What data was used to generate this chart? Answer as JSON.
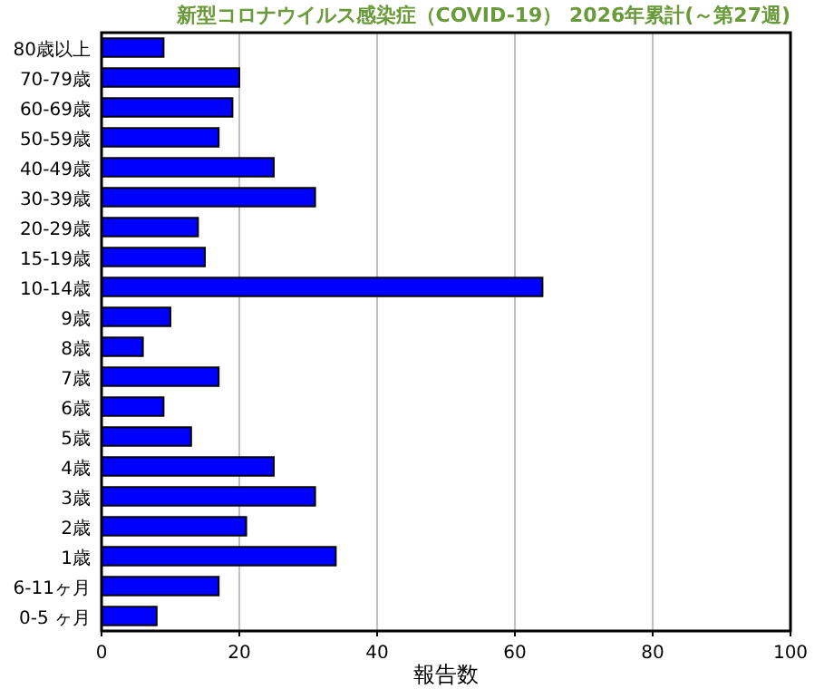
{
  "chart_data": {
    "type": "bar",
    "orientation": "horizontal",
    "title": "新型コロナウイルス感染症（COVID-19） 2026年累計(～第27週)",
    "xlabel": "報告数",
    "categories": [
      "80歳以上",
      "70-79歳",
      "60-69歳",
      "50-59歳",
      "40-49歳",
      "30-39歳",
      "20-29歳",
      "15-19歳",
      "10-14歳",
      "9歳",
      "8歳",
      "7歳",
      "6歳",
      "5歳",
      "4歳",
      "3歳",
      "2歳",
      "1歳",
      "6-11ヶ月",
      "0-5 ヶ月"
    ],
    "series": [
      {
        "color": "#0000ff",
        "values": [
          9,
          20,
          19,
          17,
          25,
          31,
          14,
          15,
          64,
          10,
          6,
          17,
          9,
          13,
          25,
          31,
          21,
          34,
          17,
          8
        ]
      }
    ],
    "xlim": [
      0,
      100
    ],
    "xticks": [
      0,
      20,
      40,
      60,
      80,
      100
    ],
    "grid": "x"
  }
}
